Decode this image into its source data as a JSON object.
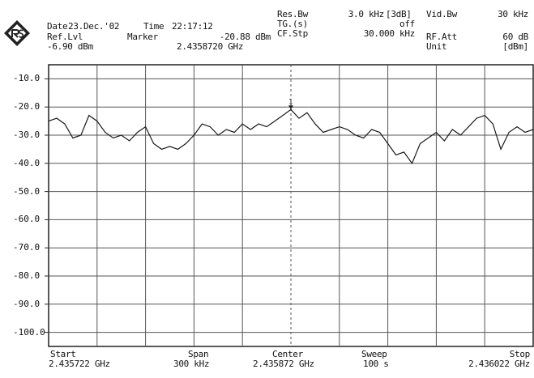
{
  "header": {
    "date_label": "Date",
    "date_value": "23.Dec.'02",
    "time_label": "Time",
    "time_value": "22:17:12",
    "ref_lvl_label": "Ref.Lvl",
    "ref_lvl_value": "-6.90 dBm",
    "marker_label": "Marker",
    "marker_level": "-20.88 dBm",
    "marker_freq": "2.4358720 GHz",
    "res_bw_label": "Res.Bw",
    "res_bw_value": "3.0 kHz",
    "res_bw_mode": "[3dB]",
    "tg_label": "TG.(s)",
    "tg_value": "off",
    "cf_stp_label": "CF.Stp",
    "cf_stp_value": "30.000 kHz",
    "vid_bw_label": "Vid.Bw",
    "vid_bw_value": "30 kHz",
    "rf_att_label": "RF.Att",
    "rf_att_value": "60 dB",
    "unit_label": "Unit",
    "unit_value": "[dBm]"
  },
  "footer": {
    "start_label": "Start",
    "start_value": "2.435722 GHz",
    "span_label": "Span",
    "span_value": "300 kHz",
    "center_label": "Center",
    "center_value": "2.435872 GHz",
    "sweep_label": "Sweep",
    "sweep_value": "100 s",
    "stop_label": "Stop",
    "stop_value": "2.436022 GHz"
  },
  "chart_data": {
    "type": "line",
    "title": "",
    "xlabel": "",
    "ylabel": "",
    "xlim": [
      2.435722,
      2.436022
    ],
    "ylim": [
      -105,
      -5
    ],
    "y_ticks": [
      "-10.0",
      "-20.0",
      "-30.0",
      "-40.0",
      "-50.0",
      "-60.0",
      "-70.0",
      "-80.0",
      "-90.0",
      "-100.0"
    ],
    "x_divisions": 10,
    "grid": true,
    "trace_color": "#1a1a1a",
    "marker": {
      "x": 2.435872,
      "y": -20.88,
      "label": "1"
    },
    "series": [
      {
        "x": [
          2.435722,
          2.435727,
          2.435732,
          2.435737,
          2.435742,
          2.435747,
          2.435752,
          2.435757,
          2.435762,
          2.435767,
          2.435772,
          2.435777,
          2.435782,
          2.435787,
          2.435792,
          2.435797,
          2.435802,
          2.435807,
          2.435812,
          2.435817,
          2.435822,
          2.435827,
          2.435832,
          2.435837,
          2.435842,
          2.435847,
          2.435852,
          2.435857,
          2.435862,
          2.435867,
          2.435872,
          2.435877,
          2.435882,
          2.435887,
          2.435892,
          2.435897,
          2.435902,
          2.435907,
          2.435912,
          2.435917,
          2.435922,
          2.435927,
          2.435932,
          2.435937,
          2.435942,
          2.435947,
          2.435952,
          2.435957,
          2.435962,
          2.435967,
          2.435972,
          2.435977,
          2.435982,
          2.435987,
          2.435992,
          2.435997,
          2.436002,
          2.436007,
          2.436012,
          2.436017,
          2.436022
        ],
        "y": [
          -25,
          -24,
          -26,
          -31,
          -30,
          -23,
          -25,
          -29,
          -31,
          -30,
          -32,
          -29,
          -27,
          -33,
          -35,
          -34,
          -35,
          -33,
          -30,
          -26,
          -27,
          -30,
          -28,
          -29,
          -26,
          -28,
          -26,
          -27,
          -25,
          -23,
          -20.9,
          -24,
          -22,
          -26,
          -29,
          -28,
          -27,
          -28,
          -30,
          -31,
          -28,
          -29,
          -33,
          -37,
          -36,
          -40,
          -33,
          -31,
          -29,
          -32,
          -28,
          -30,
          -27,
          -24,
          -23,
          -26,
          -35,
          -29,
          -27,
          -29,
          -28
        ]
      }
    ]
  }
}
